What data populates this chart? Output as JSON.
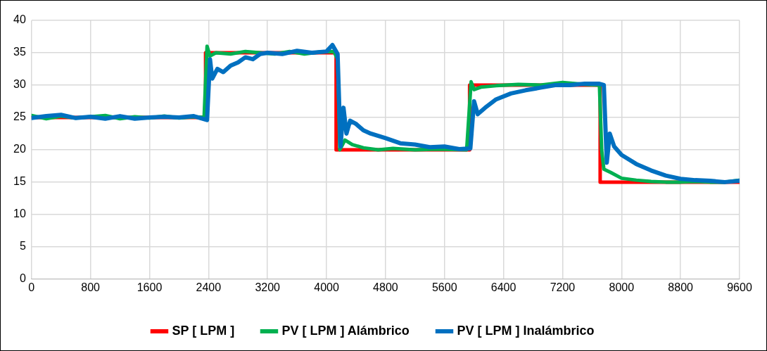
{
  "chart_data": {
    "type": "line",
    "xlim": [
      0,
      9600
    ],
    "xticks": [
      0,
      800,
      1600,
      2400,
      3200,
      4000,
      4800,
      5600,
      6400,
      7200,
      8000,
      8800,
      9600
    ],
    "ylim": [
      0,
      40
    ],
    "yticks": [
      0,
      5,
      10,
      15,
      20,
      25,
      30,
      35,
      40
    ],
    "grid": true,
    "legend": "bottom",
    "marker": "none",
    "line_style": "solid",
    "series": [
      {
        "name": "SP [ LPM ]",
        "type": "step",
        "color": "#ff0000",
        "x": [
          0,
          2360,
          4130,
          5940,
          7710,
          9600
        ],
        "values": [
          25,
          35,
          20,
          30,
          15,
          15
        ]
      },
      {
        "name": "PV [ LPM ] Alámbrico",
        "color": "#00b050",
        "x": [
          0,
          200,
          400,
          600,
          800,
          1000,
          1200,
          1400,
          1600,
          1800,
          2000,
          2200,
          2340,
          2380,
          2420,
          2500,
          2700,
          2900,
          3100,
          3300,
          3500,
          3700,
          3900,
          4100,
          4150,
          4180,
          4250,
          4350,
          4500,
          4700,
          4900,
          5200,
          5500,
          5900,
          5960,
          6000,
          6100,
          6300,
          6600,
          6900,
          7200,
          7500,
          7700,
          7730,
          7760,
          7850,
          8000,
          8200,
          8400,
          8600,
          8800,
          9000,
          9200,
          9400,
          9600
        ],
        "values": [
          25.3,
          24.8,
          25.2,
          24.9,
          25.1,
          25.3,
          24.8,
          25.1,
          24.9,
          25.2,
          24.9,
          25.1,
          25,
          36,
          34.5,
          35,
          34.8,
          35.2,
          35,
          34.8,
          35.2,
          34.8,
          35.1,
          35.2,
          34,
          20,
          21.5,
          20.8,
          20.3,
          20,
          20.2,
          20,
          20.1,
          20,
          30.5,
          29.3,
          29.7,
          29.9,
          30.1,
          30,
          30.4,
          30.1,
          30,
          20,
          17,
          16.5,
          15.6,
          15.3,
          15.1,
          15,
          15,
          15.1,
          15,
          15,
          15.3
        ]
      },
      {
        "name": "PV [ LPM ] Inalámbrico",
        "color": "#0070c0",
        "x": [
          0,
          200,
          400,
          600,
          800,
          1000,
          1200,
          1400,
          1600,
          1800,
          2000,
          2200,
          2380,
          2420,
          2450,
          2520,
          2600,
          2700,
          2800,
          2900,
          3000,
          3100,
          3200,
          3400,
          3600,
          3800,
          4000,
          4080,
          4150,
          4190,
          4230,
          4270,
          4320,
          4400,
          4500,
          4600,
          4800,
          5000,
          5200,
          5400,
          5600,
          5800,
          5950,
          6000,
          6050,
          6150,
          6300,
          6500,
          6700,
          6900,
          7100,
          7300,
          7500,
          7700,
          7760,
          7800,
          7840,
          7900,
          8000,
          8200,
          8400,
          8600,
          8800,
          9000,
          9200,
          9400,
          9600
        ],
        "values": [
          24.9,
          25.2,
          25.4,
          24.9,
          25.1,
          24.8,
          25.2,
          24.8,
          25,
          25.1,
          25,
          25.2,
          24.6,
          34,
          31,
          32.5,
          32,
          33,
          33.5,
          34.3,
          34,
          34.8,
          35,
          34.8,
          35.3,
          35,
          35.2,
          36.2,
          34.8,
          20.5,
          26.5,
          22.5,
          24.5,
          24,
          23,
          22.5,
          21.8,
          21,
          20.8,
          20.4,
          20.5,
          20.1,
          20.2,
          27.5,
          25.5,
          26.5,
          27.8,
          28.7,
          29.2,
          29.6,
          30,
          30,
          30.2,
          30.2,
          30,
          18,
          22.5,
          20.5,
          19.2,
          17.8,
          16.8,
          16,
          15.5,
          15.3,
          15.2,
          15,
          15.2
        ]
      }
    ]
  }
}
